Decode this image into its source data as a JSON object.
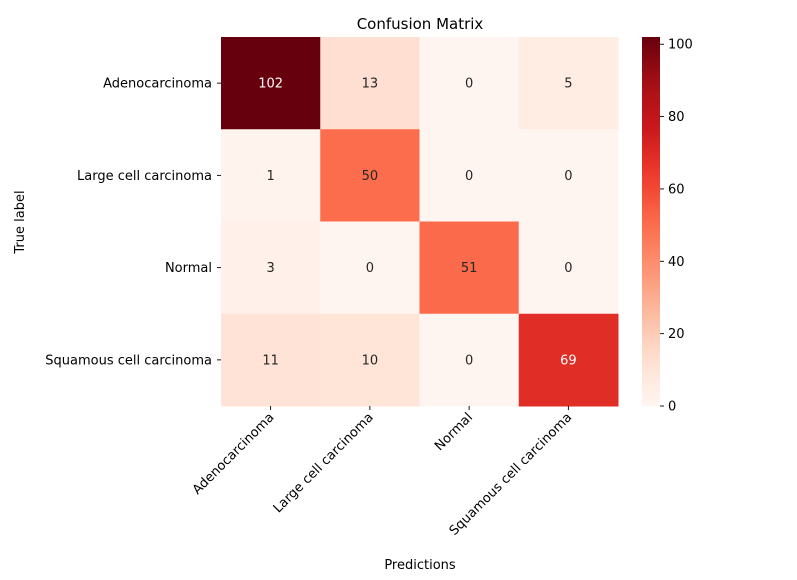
{
  "chart_data": {
    "type": "heatmap",
    "title": "Confusion Matrix",
    "xlabel": "Predictions",
    "ylabel": "True label",
    "x_categories": [
      "Adenocarcinoma",
      "Large cell carcinoma",
      "Normal",
      "Squamous cell carcinoma"
    ],
    "y_categories": [
      "Adenocarcinoma",
      "Large cell carcinoma",
      "Normal",
      "Squamous cell carcinoma"
    ],
    "matrix": [
      [
        102,
        13,
        0,
        5
      ],
      [
        1,
        50,
        0,
        0
      ],
      [
        3,
        0,
        51,
        0
      ],
      [
        11,
        10,
        0,
        69
      ]
    ],
    "colorbar": {
      "min": 0,
      "max": 102,
      "ticks": [
        0,
        20,
        40,
        60,
        80,
        100
      ],
      "colormap": "Reds"
    },
    "colors": {
      "low": "#fff5f0",
      "high": "#67000d"
    }
  }
}
